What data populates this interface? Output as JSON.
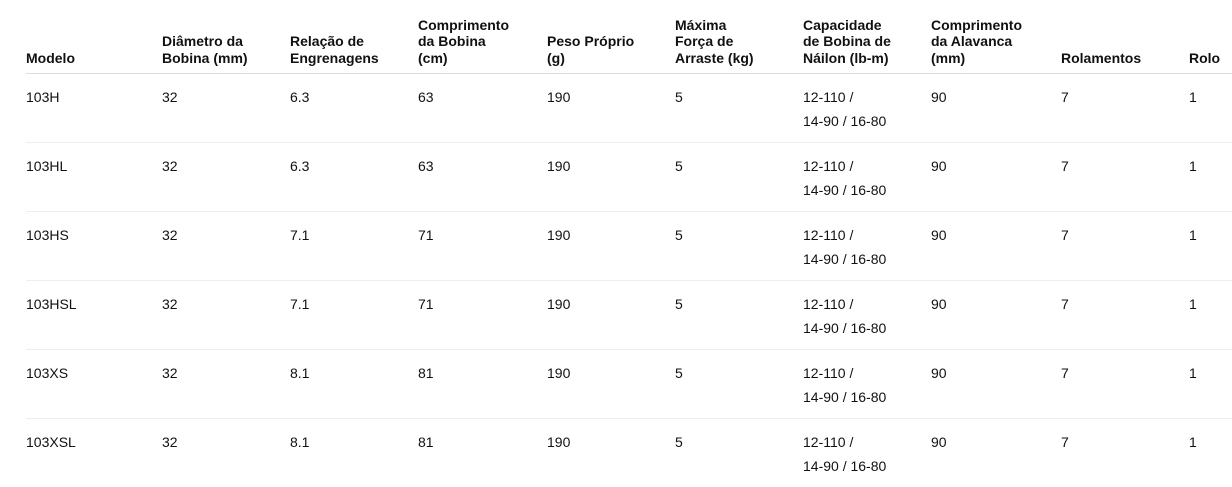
{
  "table": {
    "headers": [
      [
        "Modelo"
      ],
      [
        "Diâmetro da",
        "Bobina (mm)"
      ],
      [
        "Relação de",
        "Engrenagens"
      ],
      [
        "Comprimento",
        "da Bobina",
        "(cm)"
      ],
      [
        "Peso Próprio",
        "(g)"
      ],
      [
        "Máxima",
        "Força de",
        "Arraste (kg)"
      ],
      [
        "Capacidade",
        "de Bobina de",
        "Náilon (lb-m)"
      ],
      [
        "Comprimento",
        "da Alavanca",
        "(mm)"
      ],
      [
        "Rolamentos"
      ],
      [
        "Rolo"
      ]
    ],
    "rows": [
      [
        "103H",
        "32",
        "6.3",
        "63",
        "190",
        "5",
        [
          "12-110 /",
          "14-90 / 16-80"
        ],
        "90",
        "7",
        "1"
      ],
      [
        "103HL",
        "32",
        "6.3",
        "63",
        "190",
        "5",
        [
          "12-110 /",
          "14-90 / 16-80"
        ],
        "90",
        "7",
        "1"
      ],
      [
        "103HS",
        "32",
        "7.1",
        "71",
        "190",
        "5",
        [
          "12-110 /",
          "14-90 / 16-80"
        ],
        "90",
        "7",
        "1"
      ],
      [
        "103HSL",
        "32",
        "7.1",
        "71",
        "190",
        "5",
        [
          "12-110 /",
          "14-90 / 16-80"
        ],
        "90",
        "7",
        "1"
      ],
      [
        "103XS",
        "32",
        "8.1",
        "81",
        "190",
        "5",
        [
          "12-110 /",
          "14-90 / 16-80"
        ],
        "90",
        "7",
        "1"
      ],
      [
        "103XSL",
        "32",
        "8.1",
        "81",
        "190",
        "5",
        [
          "12-110 /",
          "14-90 / 16-80"
        ],
        "90",
        "7",
        "1"
      ]
    ]
  }
}
